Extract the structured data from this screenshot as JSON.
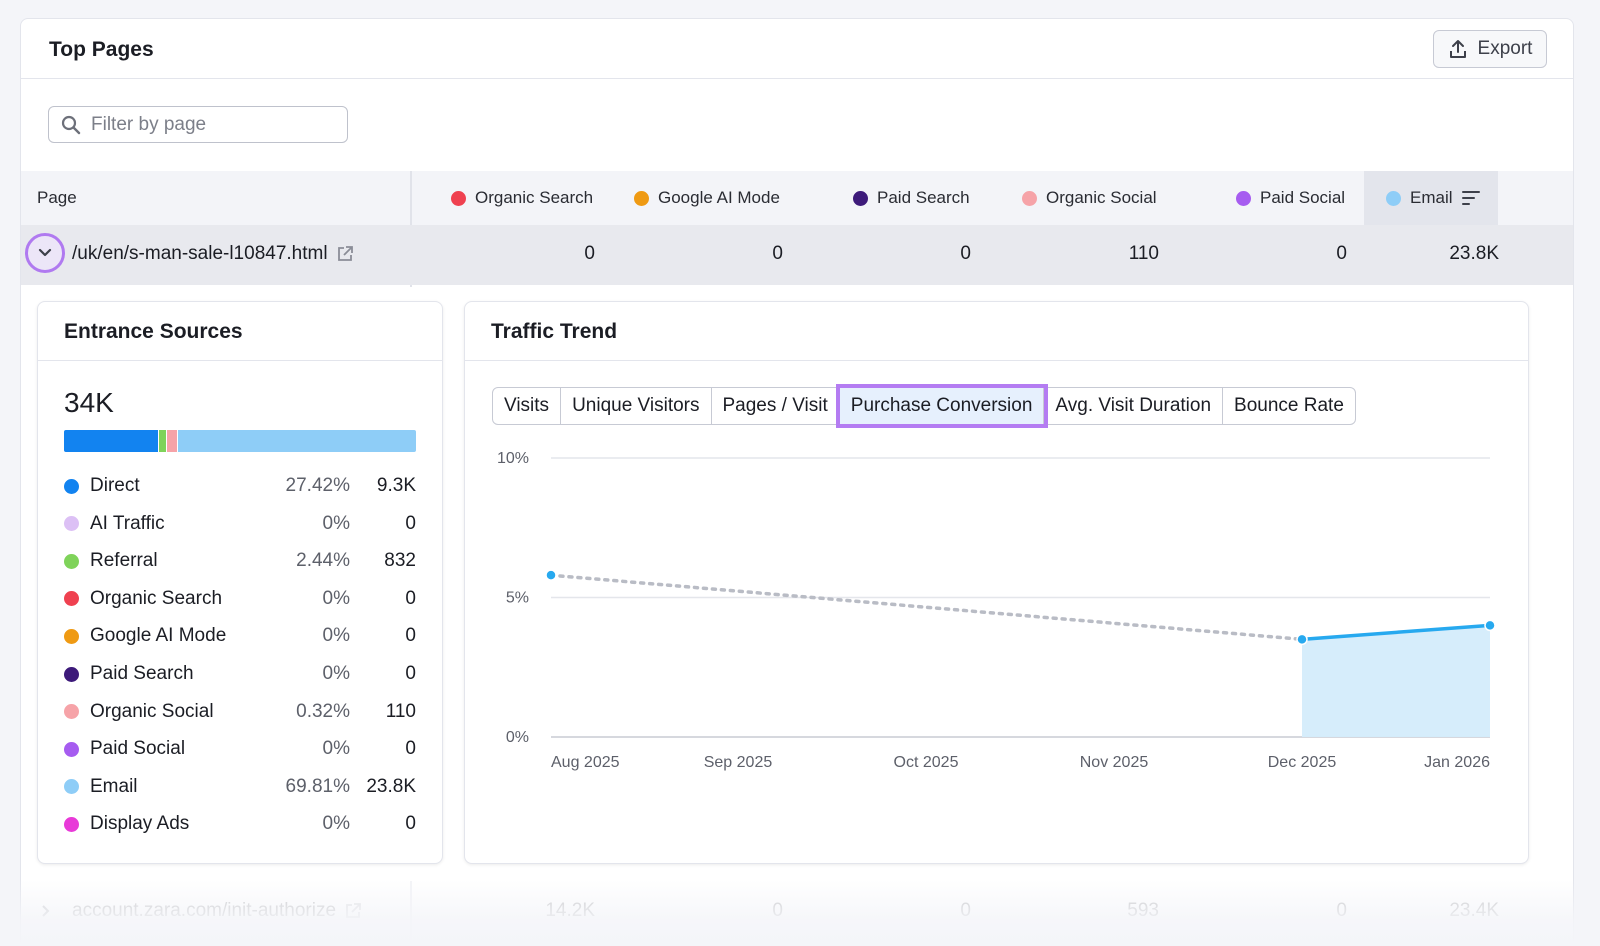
{
  "card": {
    "title": "Top Pages",
    "export_label": "Export",
    "filter_placeholder": "Filter by page"
  },
  "table": {
    "page_header": "Page",
    "columns": [
      {
        "label": "Organic Search",
        "color": "#ef4150"
      },
      {
        "label": "Google AI Mode",
        "color": "#ef9a13"
      },
      {
        "label": "Paid Search",
        "color": "#3d1a7a"
      },
      {
        "label": "Organic Social",
        "color": "#f6a3a8"
      },
      {
        "label": "Paid Social",
        "color": "#a65cf0"
      },
      {
        "label": "Email",
        "color": "#8ecdf7"
      }
    ],
    "rows": [
      {
        "page": "/uk/en/s-man-sale-l10847.html",
        "values": [
          "0",
          "0",
          "0",
          "110",
          "0",
          "23.8K"
        ]
      },
      {
        "page": "account.zara.com/init-authorize",
        "values": [
          "14.2K",
          "0",
          "0",
          "593",
          "0",
          "23.4K"
        ]
      }
    ]
  },
  "entrance_sources": {
    "title": "Entrance Sources",
    "total": "34K",
    "bar_segments": [
      {
        "name": "Direct",
        "share": 27.42,
        "color": "#1283f0"
      },
      {
        "name": "Referral",
        "share": 2.44,
        "color": "#7fd35a"
      },
      {
        "name": "Organic Social",
        "share": 0.32,
        "color": "#f6a3a8"
      },
      {
        "name": "Email",
        "share": 69.81,
        "color": "#8ecdf7"
      }
    ],
    "sources": [
      {
        "name": "Direct",
        "pct": "27.42%",
        "value": "9.3K",
        "color": "#1283f0"
      },
      {
        "name": "AI Traffic",
        "pct": "0%",
        "value": "0",
        "color": "#dcc0f5"
      },
      {
        "name": "Referral",
        "pct": "2.44%",
        "value": "832",
        "color": "#7fd35a"
      },
      {
        "name": "Organic Search",
        "pct": "0%",
        "value": "0",
        "color": "#ef4150"
      },
      {
        "name": "Google AI Mode",
        "pct": "0%",
        "value": "0",
        "color": "#ef9a13"
      },
      {
        "name": "Paid Search",
        "pct": "0%",
        "value": "0",
        "color": "#3d1a7a"
      },
      {
        "name": "Organic Social",
        "pct": "0.32%",
        "value": "110",
        "color": "#f6a3a8"
      },
      {
        "name": "Paid Social",
        "pct": "0%",
        "value": "0",
        "color": "#a65cf0"
      },
      {
        "name": "Email",
        "pct": "69.81%",
        "value": "23.8K",
        "color": "#8ecdf7"
      },
      {
        "name": "Display Ads",
        "pct": "0%",
        "value": "0",
        "color": "#e83ad8"
      }
    ]
  },
  "traffic_trend": {
    "title": "Traffic Trend",
    "tabs": [
      "Visits",
      "Unique Visitors",
      "Pages / Visit",
      "Purchase Conversion",
      "Avg. Visit Duration",
      "Bounce Rate"
    ],
    "active_tab": "Purchase Conversion"
  },
  "chart_data": {
    "type": "line",
    "x": [
      "Aug 2025",
      "Sep 2025",
      "Oct 2025",
      "Nov 2025",
      "Dec 2025",
      "Jan 2026"
    ],
    "y_ticks": [
      "10%",
      "5%",
      "0%"
    ],
    "ylim": [
      0,
      10
    ],
    "series": [
      {
        "values": [
          5.8,
          null,
          null,
          null,
          3.5,
          4.0
        ],
        "color": "#27a9ef"
      }
    ],
    "grid": true
  },
  "colors": {
    "accent": "#b47cf2",
    "line": "#27a9ef",
    "area": "#d4ecfb"
  }
}
